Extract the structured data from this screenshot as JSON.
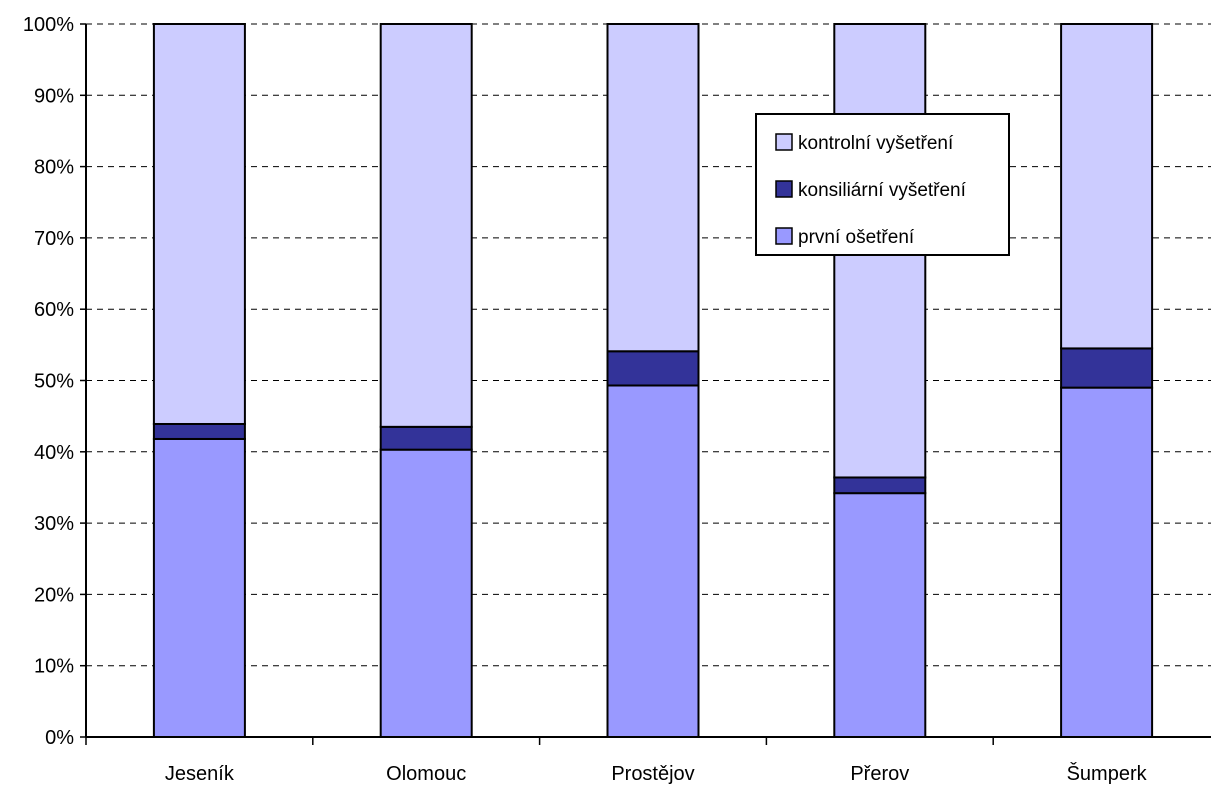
{
  "chart_data": {
    "type": "bar",
    "stacked": true,
    "percent_stacked": true,
    "categories": [
      "Jeseník",
      "Olomouc",
      "Prostějov",
      "Přerov",
      "Šumperk"
    ],
    "series": [
      {
        "name": "první ošetření",
        "values": [
          41.8,
          40.3,
          49.3,
          34.2,
          49.0
        ],
        "color": "#9999ff"
      },
      {
        "name": "konsiliární vyšetření",
        "values": [
          2.1,
          3.2,
          4.8,
          2.2,
          5.5
        ],
        "color": "#333399"
      },
      {
        "name": "kontrolní vyšetření",
        "values": [
          56.1,
          56.5,
          45.9,
          63.6,
          45.5
        ],
        "color": "#ccccff"
      }
    ],
    "legend_order": [
      "kontrolní vyšetření",
      "konsiliární vyšetření",
      "první ošetření"
    ],
    "y_ticks": [
      "0%",
      "10%",
      "20%",
      "30%",
      "40%",
      "50%",
      "60%",
      "70%",
      "80%",
      "90%",
      "100%"
    ],
    "ylim": [
      0,
      100
    ],
    "grid": true,
    "grid_style": "dashed",
    "legend_position": "top-right (inside plot)",
    "title": "",
    "xlabel": "",
    "ylabel": ""
  }
}
